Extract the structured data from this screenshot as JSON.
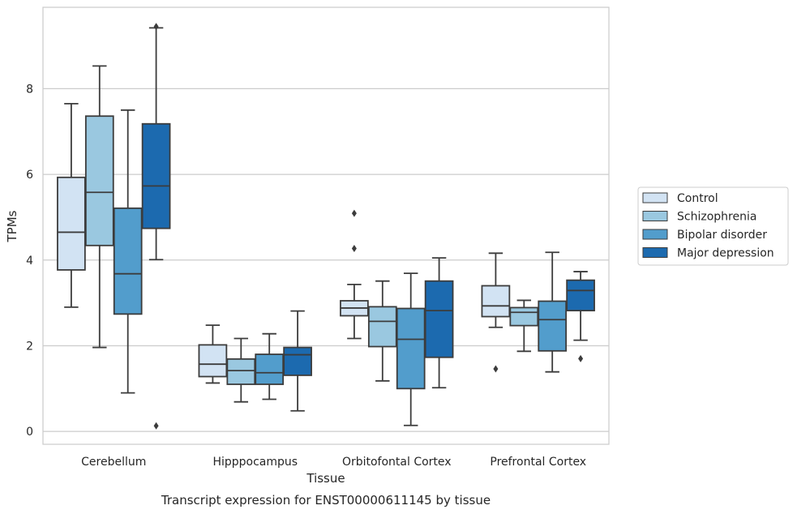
{
  "chart_data": {
    "type": "box",
    "title": "",
    "caption": "Transcript expression for ENST00000611145 by tissue",
    "xlabel": "Tissue",
    "ylabel": "TPMs",
    "ylim": [
      -0.3,
      9.9
    ],
    "yticks": [
      0,
      2,
      4,
      6,
      8
    ],
    "grid": "horizontal",
    "legend_position": "right",
    "categories": [
      "Cerebellum",
      "Hipppocampus",
      "Orbitofontal Cortex",
      "Prefrontal Cortex"
    ],
    "series": [
      {
        "name": "Control",
        "color": "#d2e3f3",
        "boxes": [
          {
            "whislo": 2.9,
            "q1": 3.77,
            "med": 4.65,
            "q3": 5.93,
            "whishi": 7.65,
            "fliers": []
          },
          {
            "whislo": 1.13,
            "q1": 1.28,
            "med": 1.57,
            "q3": 2.02,
            "whishi": 2.48,
            "fliers": []
          },
          {
            "whislo": 2.17,
            "q1": 2.7,
            "med": 2.88,
            "q3": 3.05,
            "whishi": 3.43,
            "fliers": [
              5.09,
              4.27
            ]
          },
          {
            "whislo": 2.43,
            "q1": 2.68,
            "med": 2.93,
            "q3": 3.4,
            "whishi": 4.16,
            "fliers": [
              1.46
            ]
          }
        ]
      },
      {
        "name": "Schizophrenia",
        "color": "#9ac8e0",
        "boxes": [
          {
            "whislo": 1.96,
            "q1": 4.34,
            "med": 5.58,
            "q3": 7.36,
            "whishi": 8.53,
            "fliers": []
          },
          {
            "whislo": 0.69,
            "q1": 1.1,
            "med": 1.42,
            "q3": 1.69,
            "whishi": 2.17,
            "fliers": []
          },
          {
            "whislo": 1.18,
            "q1": 1.98,
            "med": 2.57,
            "q3": 2.91,
            "whishi": 3.51,
            "fliers": []
          },
          {
            "whislo": 1.87,
            "q1": 2.47,
            "med": 2.78,
            "q3": 2.89,
            "whishi": 3.06,
            "fliers": []
          }
        ]
      },
      {
        "name": "Bipolar disorder",
        "color": "#529dcc",
        "boxes": [
          {
            "whislo": 0.9,
            "q1": 2.74,
            "med": 3.68,
            "q3": 5.21,
            "whishi": 7.5,
            "fliers": []
          },
          {
            "whislo": 0.75,
            "q1": 1.1,
            "med": 1.37,
            "q3": 1.8,
            "whishi": 2.28,
            "fliers": []
          },
          {
            "whislo": 0.14,
            "q1": 1.0,
            "med": 2.15,
            "q3": 2.87,
            "whishi": 3.69,
            "fliers": []
          },
          {
            "whislo": 1.39,
            "q1": 1.88,
            "med": 2.61,
            "q3": 3.04,
            "whishi": 4.18,
            "fliers": []
          }
        ]
      },
      {
        "name": "Major depression",
        "color": "#1c6aaf",
        "boxes": [
          {
            "whislo": 4.01,
            "q1": 4.74,
            "med": 5.73,
            "q3": 7.18,
            "whishi": 9.42,
            "fliers": [
              9.45,
              0.13
            ]
          },
          {
            "whislo": 0.48,
            "q1": 1.31,
            "med": 1.79,
            "q3": 1.96,
            "whishi": 2.81,
            "fliers": []
          },
          {
            "whislo": 1.02,
            "q1": 1.73,
            "med": 2.82,
            "q3": 3.51,
            "whishi": 4.05,
            "fliers": []
          },
          {
            "whislo": 2.13,
            "q1": 2.82,
            "med": 3.29,
            "q3": 3.53,
            "whishi": 3.73,
            "fliers": [
              1.7
            ]
          }
        ]
      }
    ]
  }
}
